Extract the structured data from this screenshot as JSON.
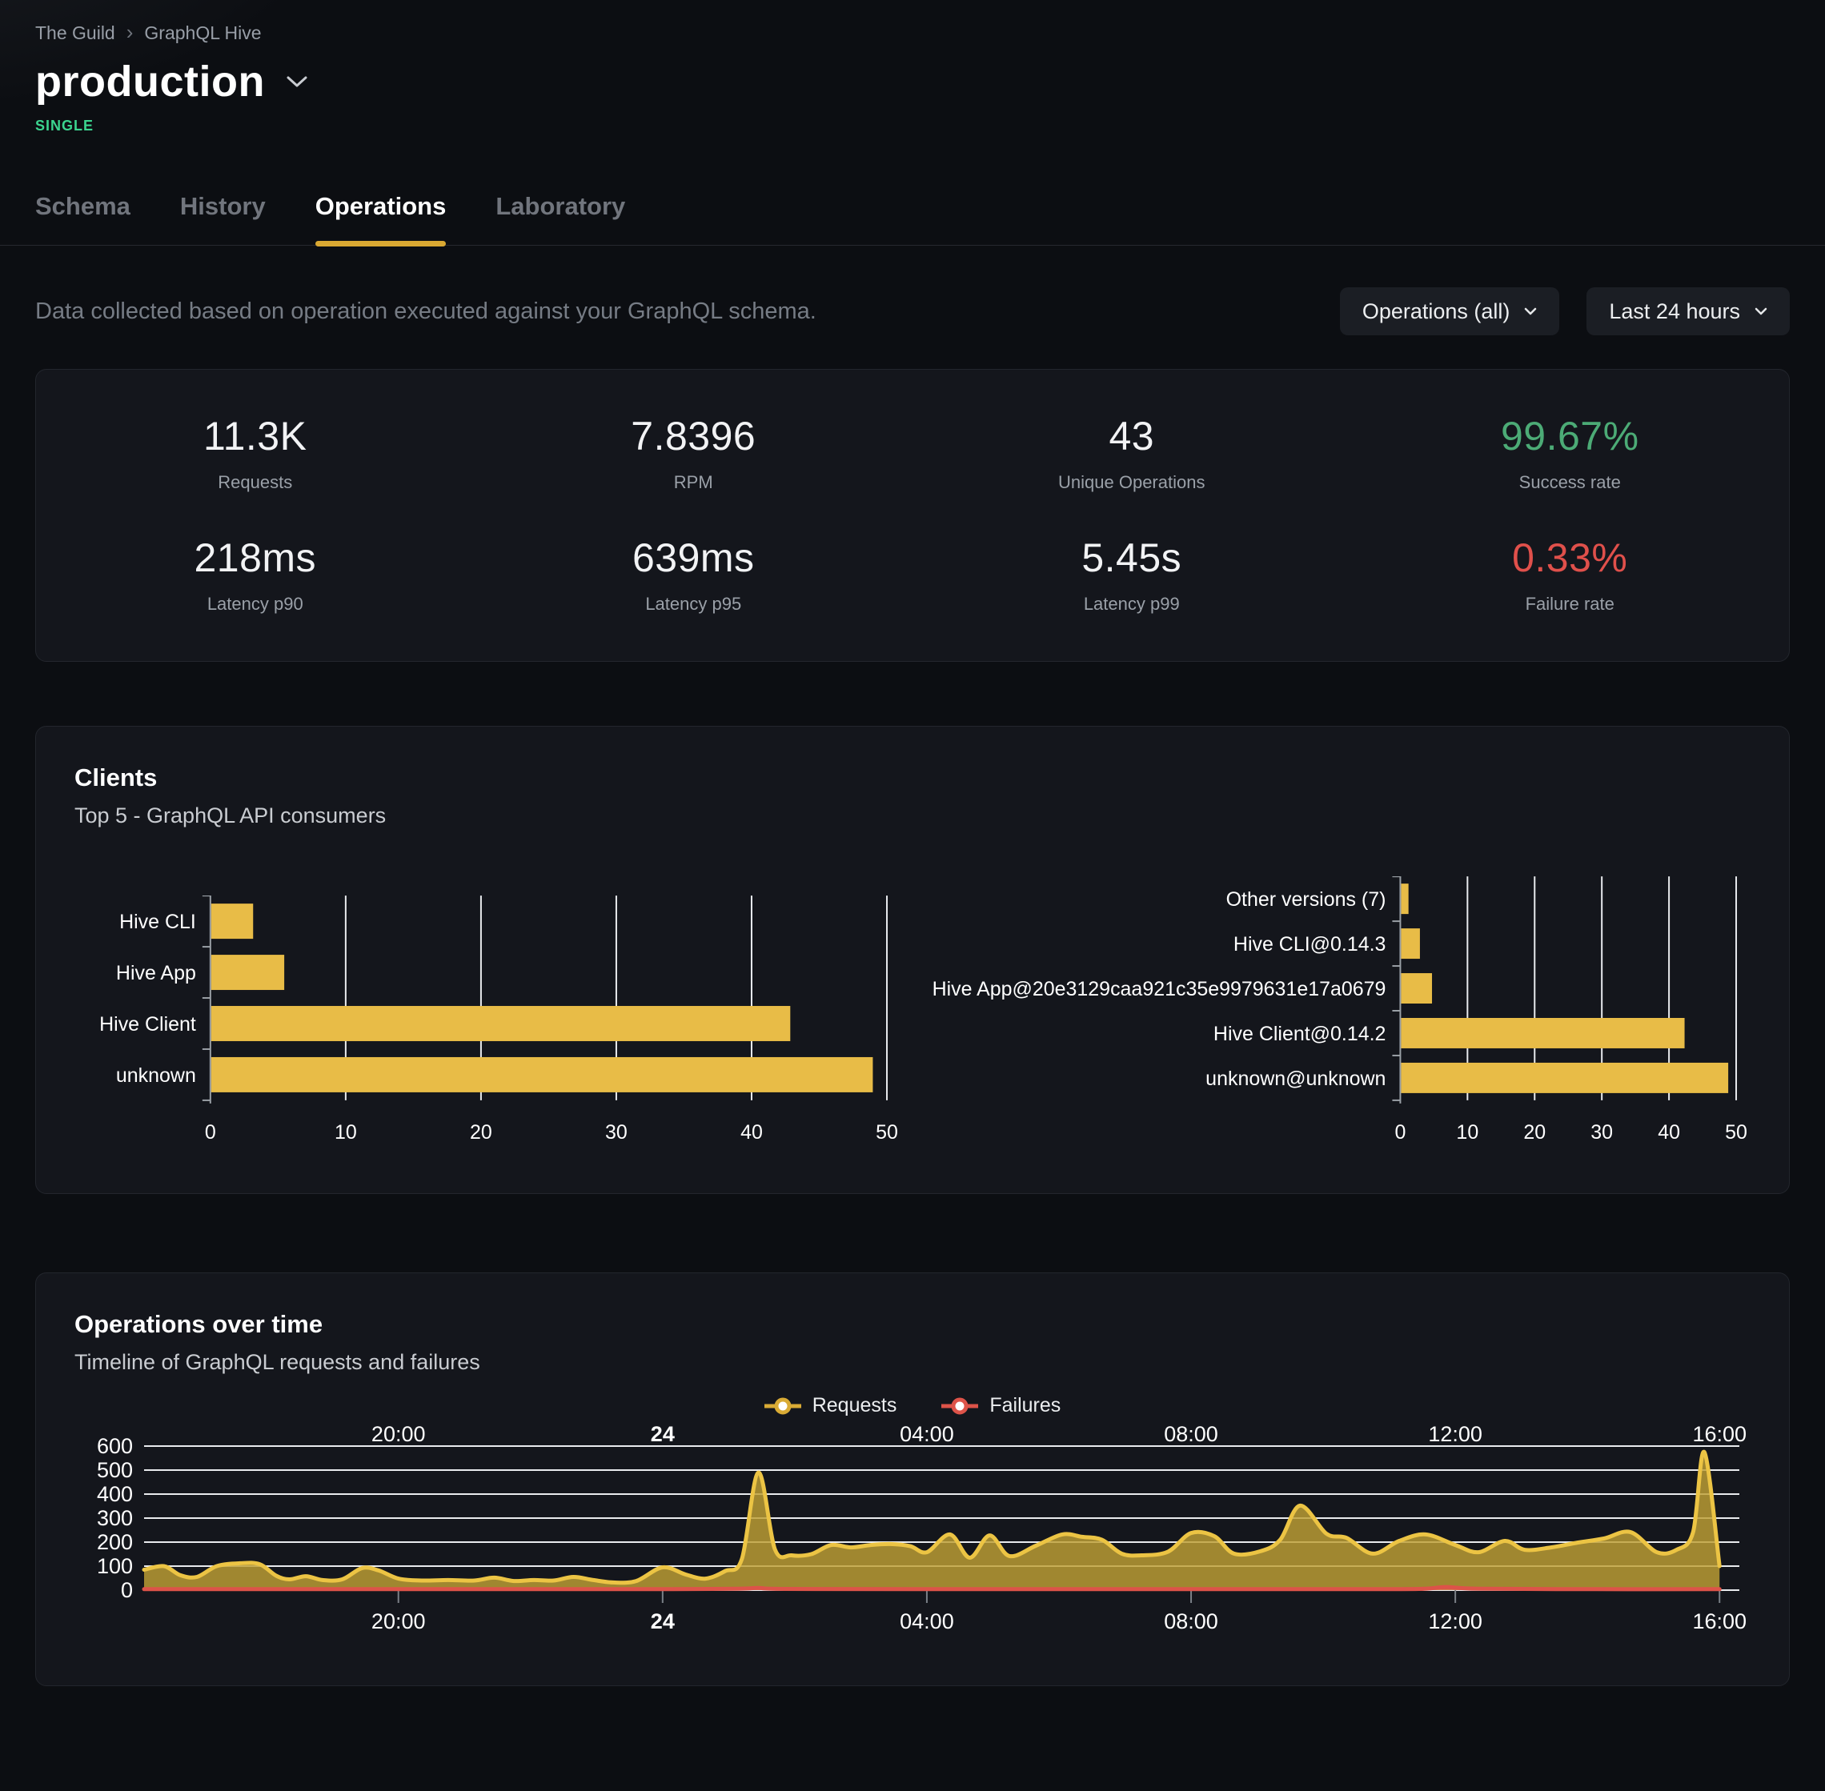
{
  "breadcrumb": {
    "org": "The Guild",
    "project": "GraphQL Hive",
    "separator": "›"
  },
  "header": {
    "title": "production",
    "badge": "SINGLE",
    "badge_color": "#3bd48f"
  },
  "tabs": [
    {
      "label": "Schema",
      "active": false
    },
    {
      "label": "History",
      "active": false
    },
    {
      "label": "Operations",
      "active": true
    },
    {
      "label": "Laboratory",
      "active": false
    }
  ],
  "filters": {
    "description": "Data collected based on operation executed against your GraphQL schema.",
    "operations_dropdown": "Operations (all)",
    "period_dropdown": "Last 24 hours"
  },
  "stats": [
    {
      "value": "11.3K",
      "label": "Requests",
      "tone": "default"
    },
    {
      "value": "7.8396",
      "label": "RPM",
      "tone": "default"
    },
    {
      "value": "43",
      "label": "Unique Operations",
      "tone": "default"
    },
    {
      "value": "99.67%",
      "label": "Success rate",
      "tone": "success"
    },
    {
      "value": "218ms",
      "label": "Latency p90",
      "tone": "default"
    },
    {
      "value": "639ms",
      "label": "Latency p95",
      "tone": "default"
    },
    {
      "value": "5.45s",
      "label": "Latency p99",
      "tone": "default"
    },
    {
      "value": "0.33%",
      "label": "Failure rate",
      "tone": "danger"
    }
  ],
  "clients_card": {
    "title": "Clients",
    "subtitle": "Top 5 - GraphQL API consumers"
  },
  "ops_card": {
    "title": "Operations over time",
    "subtitle": "Timeline of GraphQL requests and failures",
    "legend": [
      {
        "label": "Requests",
        "color": "#d9ab35"
      },
      {
        "label": "Failures",
        "color": "#dd5349"
      }
    ]
  },
  "colors": {
    "accent_yellow": "#d9a832",
    "bar_yellow": "#e8bc47",
    "area_fill": "#bfa035",
    "area_stroke": "#ecc444",
    "failure_red": "#dd5349",
    "success_green": "#4cab76",
    "gridline": "#e9ebee",
    "axis_gray": "#9aa0a6",
    "tick_gray": "#7a8087"
  },
  "chart_data": [
    {
      "type": "bar",
      "orientation": "horizontal",
      "title": "Clients - top clients",
      "categories": [
        "Hive CLI",
        "Hive App",
        "Hive Client",
        "unknown"
      ],
      "values": [
        3.1,
        5.4,
        42.8,
        48.9
      ],
      "xlim": [
        0,
        50
      ],
      "xticks": [
        0,
        10,
        20,
        30,
        40,
        50
      ],
      "grid": true,
      "bar_color": "#e8bc47"
    },
    {
      "type": "bar",
      "orientation": "horizontal",
      "title": "Clients - top client versions",
      "categories": [
        "Other versions (7)",
        "Hive CLI@0.14.3",
        "Hive App@20e3129caa921c35e9979631e17a0679",
        "Hive Client@0.14.2",
        "unknown@unknown"
      ],
      "values": [
        1.1,
        2.8,
        4.6,
        42.2,
        48.7
      ],
      "xlim": [
        0,
        50
      ],
      "xticks": [
        0,
        10,
        20,
        30,
        40,
        50
      ],
      "grid": true,
      "bar_color": "#e8bc47"
    },
    {
      "type": "area",
      "title": "Operations over time",
      "x_domain_hours": [
        0,
        24.15
      ],
      "x_ticks": [
        {
          "t": 3.85,
          "label": "20:00",
          "bold": false
        },
        {
          "t": 7.85,
          "label": "24",
          "bold": true
        },
        {
          "t": 11.85,
          "label": "04:00",
          "bold": false
        },
        {
          "t": 15.85,
          "label": "08:00",
          "bold": false
        },
        {
          "t": 19.85,
          "label": "12:00",
          "bold": false
        },
        {
          "t": 23.85,
          "label": "16:00",
          "bold": false
        }
      ],
      "ylim": [
        0,
        600
      ],
      "yticks": [
        0,
        100,
        200,
        300,
        400,
        500,
        600
      ],
      "grid": true,
      "legend_position": "top-center",
      "series": [
        {
          "name": "Requests",
          "stroke": "#ecc444",
          "fill": "#bfa035",
          "fill_opacity": 0.82,
          "points": [
            [
              0,
              85
            ],
            [
              0.3,
              100
            ],
            [
              0.55,
              62
            ],
            [
              0.8,
              55
            ],
            [
              1.1,
              100
            ],
            [
              1.45,
              112
            ],
            [
              1.75,
              108
            ],
            [
              2.0,
              60
            ],
            [
              2.2,
              45
            ],
            [
              2.45,
              58
            ],
            [
              2.7,
              42
            ],
            [
              3.0,
              45
            ],
            [
              3.3,
              92
            ],
            [
              3.55,
              82
            ],
            [
              3.85,
              48
            ],
            [
              4.2,
              40
            ],
            [
              4.6,
              42
            ],
            [
              5.0,
              40
            ],
            [
              5.3,
              52
            ],
            [
              5.6,
              38
            ],
            [
              5.9,
              42
            ],
            [
              6.2,
              40
            ],
            [
              6.5,
              55
            ],
            [
              6.8,
              42
            ],
            [
              7.1,
              32
            ],
            [
              7.45,
              38
            ],
            [
              7.85,
              95
            ],
            [
              8.2,
              65
            ],
            [
              8.5,
              48
            ],
            [
              8.8,
              80
            ],
            [
              9.05,
              130
            ],
            [
              9.3,
              490
            ],
            [
              9.55,
              170
            ],
            [
              9.8,
              145
            ],
            [
              10.1,
              150
            ],
            [
              10.4,
              188
            ],
            [
              10.7,
              178
            ],
            [
              11.0,
              188
            ],
            [
              11.3,
              192
            ],
            [
              11.6,
              183
            ],
            [
              11.85,
              158
            ],
            [
              12.2,
              232
            ],
            [
              12.5,
              135
            ],
            [
              12.8,
              228
            ],
            [
              13.1,
              142
            ],
            [
              13.5,
              185
            ],
            [
              13.9,
              232
            ],
            [
              14.2,
              222
            ],
            [
              14.5,
              210
            ],
            [
              14.8,
              152
            ],
            [
              15.1,
              145
            ],
            [
              15.5,
              160
            ],
            [
              15.85,
              238
            ],
            [
              16.2,
              225
            ],
            [
              16.5,
              152
            ],
            [
              16.9,
              162
            ],
            [
              17.2,
              210
            ],
            [
              17.5,
              352
            ],
            [
              17.9,
              235
            ],
            [
              18.2,
              218
            ],
            [
              18.6,
              152
            ],
            [
              19.0,
              205
            ],
            [
              19.4,
              232
            ],
            [
              19.85,
              188
            ],
            [
              20.2,
              158
            ],
            [
              20.6,
              205
            ],
            [
              20.9,
              168
            ],
            [
              21.3,
              178
            ],
            [
              21.7,
              198
            ],
            [
              22.1,
              215
            ],
            [
              22.5,
              242
            ],
            [
              22.9,
              158
            ],
            [
              23.2,
              168
            ],
            [
              23.45,
              242
            ],
            [
              23.62,
              575
            ],
            [
              23.85,
              100
            ]
          ]
        },
        {
          "name": "Failures",
          "stroke": "#dd5349",
          "fill": "#dd5349",
          "fill_opacity": 0.5,
          "points": [
            [
              0,
              4
            ],
            [
              3,
              4
            ],
            [
              6,
              4
            ],
            [
              8,
              4
            ],
            [
              9,
              6
            ],
            [
              9.3,
              9
            ],
            [
              9.7,
              5
            ],
            [
              12,
              4
            ],
            [
              15,
              4
            ],
            [
              18,
              4
            ],
            [
              19.3,
              5
            ],
            [
              19.7,
              13
            ],
            [
              20.2,
              6
            ],
            [
              22,
              4
            ],
            [
              23.85,
              4
            ]
          ]
        }
      ]
    }
  ]
}
